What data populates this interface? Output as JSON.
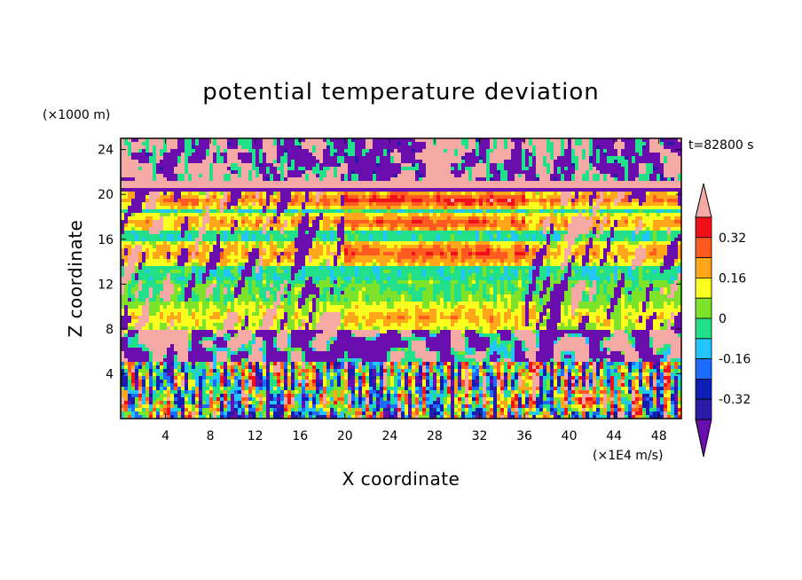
{
  "chart_data": {
    "type": "heatmap",
    "title": "potential temperature deviation",
    "xlabel": "X coordinate",
    "ylabel": "Z coordinate",
    "x_unit": "(×1E4 m/s)",
    "y_unit": "(×1000 m)",
    "time_label": "t=82800 s",
    "xlim": [
      0,
      50
    ],
    "ylim": [
      0,
      25
    ],
    "x_ticks": [
      4,
      8,
      12,
      16,
      20,
      24,
      28,
      32,
      36,
      40,
      44,
      48
    ],
    "y_ticks": [
      4,
      8,
      12,
      16,
      20,
      24
    ],
    "colorbar": {
      "levels": [
        -0.4,
        -0.32,
        -0.24,
        -0.16,
        -0.08,
        0,
        0.08,
        0.16,
        0.24,
        0.32,
        0.4
      ],
      "colors": [
        "#6a0dad",
        "#2a1aa8",
        "#0b1fb3",
        "#1e6bff",
        "#23c4ff",
        "#22e08a",
        "#7ce32a",
        "#fbff1f",
        "#ffa61a",
        "#ff5a1f",
        "#f0101a",
        "#f6aaa5"
      ],
      "tick_labels": [
        "0.32",
        "0.16",
        "0",
        "-0.16",
        "-0.32"
      ],
      "tick_values": [
        0.32,
        0.16,
        0,
        -0.16,
        -0.32
      ]
    },
    "bands": [
      {
        "z": [
          0,
          5
        ],
        "pattern": "noisy mixed, mostly negative-to-neutral"
      },
      {
        "z": [
          5,
          8
        ],
        "pattern": "purple/pink mixed"
      },
      {
        "z": [
          8,
          10
        ],
        "value": 0.2
      },
      {
        "z": [
          10,
          12
        ],
        "value": 0.02
      },
      {
        "z": [
          14,
          15.5
        ],
        "value": 0.3
      },
      {
        "z": [
          17,
          18
        ],
        "value": 0.3
      },
      {
        "z": [
          19,
          20
        ],
        "value": 0.35
      },
      {
        "z": [
          20.5,
          21
        ],
        "value": 0.45
      },
      {
        "z": [
          21,
          25
        ],
        "pattern": "purple/pink mixed"
      }
    ]
  }
}
